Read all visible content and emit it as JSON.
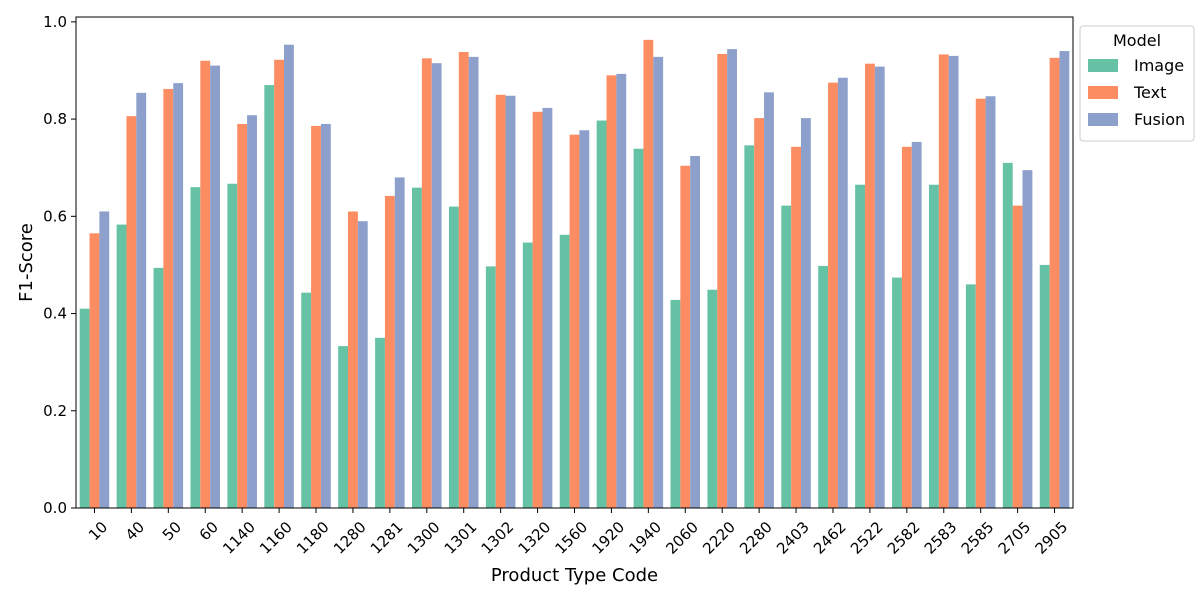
{
  "chart_data": {
    "type": "bar",
    "xlabel": "Product Type Code",
    "ylabel": "F1-Score",
    "ylim": [
      0,
      1.01
    ],
    "yticks": [
      0.0,
      0.2,
      0.4,
      0.6,
      0.8,
      1.0
    ],
    "ytick_labels": [
      "0.0",
      "0.2",
      "0.4",
      "0.6",
      "0.8",
      "1.0"
    ],
    "grid": false,
    "legend": {
      "title": "Model",
      "position": "outside-top-right"
    },
    "categories": [
      "10",
      "40",
      "50",
      "60",
      "1140",
      "1160",
      "1180",
      "1280",
      "1281",
      "1300",
      "1301",
      "1302",
      "1320",
      "1560",
      "1920",
      "1940",
      "2060",
      "2220",
      "2280",
      "2403",
      "2462",
      "2522",
      "2582",
      "2583",
      "2585",
      "2705",
      "2905"
    ],
    "series": [
      {
        "name": "Image",
        "color": "#66c2a5",
        "values": [
          0.41,
          0.583,
          0.494,
          0.66,
          0.667,
          0.87,
          0.443,
          0.333,
          0.35,
          0.659,
          0.62,
          0.497,
          0.546,
          0.562,
          0.797,
          0.739,
          0.428,
          0.449,
          0.746,
          0.622,
          0.498,
          0.665,
          0.474,
          0.665,
          0.46,
          0.71,
          0.5
        ]
      },
      {
        "name": "Text",
        "color": "#fc8d62",
        "values": [
          0.565,
          0.806,
          0.862,
          0.92,
          0.79,
          0.922,
          0.786,
          0.61,
          0.642,
          0.925,
          0.938,
          0.85,
          0.815,
          0.768,
          0.89,
          0.963,
          0.704,
          0.934,
          0.802,
          0.743,
          0.875,
          0.914,
          0.743,
          0.933,
          0.842,
          0.622,
          0.926
        ]
      },
      {
        "name": "Fusion",
        "color": "#8da0cb",
        "values": [
          0.61,
          0.854,
          0.874,
          0.91,
          0.808,
          0.953,
          0.79,
          0.59,
          0.68,
          0.915,
          0.928,
          0.848,
          0.823,
          0.777,
          0.893,
          0.928,
          0.724,
          0.944,
          0.855,
          0.802,
          0.885,
          0.908,
          0.753,
          0.93,
          0.847,
          0.695,
          0.94
        ]
      }
    ]
  }
}
